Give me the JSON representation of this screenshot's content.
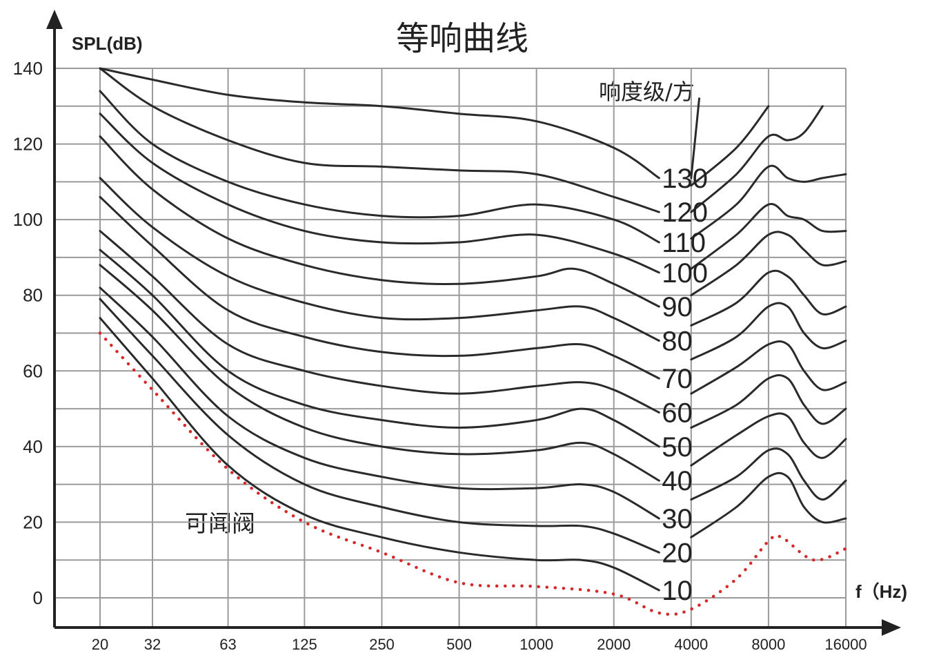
{
  "colors": {
    "curves": "#2a2a2a",
    "threshold": "#d62828",
    "grid": "#9a9a9a"
  },
  "chart_data": {
    "type": "line",
    "title": "等响曲线",
    "ylabel": "SPL(dB)",
    "xlabel": "f（Hz)",
    "legend_title": "响度级/方",
    "threshold_label": "可闻阀",
    "x_scale": "log",
    "xlim": [
      20,
      16000
    ],
    "ylim": [
      -8,
      140
    ],
    "grid": true,
    "x_ticks": [
      20,
      32,
      63,
      125,
      250,
      500,
      1000,
      2000,
      4000,
      8000,
      16000
    ],
    "x_tick_labels": [
      "20",
      "32",
      "63",
      "125",
      "250",
      "500",
      "1000",
      "2000",
      "4000",
      "8000",
      "16000"
    ],
    "y_ticks": [
      0,
      20,
      40,
      60,
      80,
      100,
      120,
      140
    ],
    "y_tick_labels": [
      "0",
      "20",
      "40",
      "60",
      "80",
      "100",
      "120",
      "140"
    ],
    "series": [
      {
        "name": "130",
        "x": [
          20,
          32,
          63,
          125,
          250,
          500,
          1000,
          2000,
          3000
        ],
        "y": [
          140,
          137,
          133,
          131,
          130,
          128,
          126,
          119,
          111
        ]
      },
      {
        "name": "120",
        "x": [
          20,
          32,
          63,
          125,
          250,
          500,
          1000,
          2000,
          3000
        ],
        "y": [
          140,
          130,
          121,
          115,
          114,
          113,
          112,
          106,
          102
        ]
      },
      {
        "name": "110",
        "x": [
          20,
          32,
          63,
          125,
          250,
          500,
          1000,
          2000,
          3000
        ],
        "y": [
          134,
          120,
          110,
          104,
          101,
          101,
          104,
          100,
          94
        ]
      },
      {
        "name": "100",
        "x": [
          20,
          32,
          63,
          125,
          250,
          500,
          1000,
          2000,
          3000
        ],
        "y": [
          128,
          115,
          104,
          97,
          94,
          94,
          96,
          91,
          86
        ]
      },
      {
        "name": "90",
        "x": [
          20,
          32,
          63,
          125,
          250,
          500,
          1000,
          1400,
          2000,
          3000
        ],
        "y": [
          122,
          108,
          95,
          88,
          84,
          83,
          85,
          87,
          83,
          77
        ]
      },
      {
        "name": "80",
        "x": [
          20,
          32,
          63,
          125,
          250,
          500,
          1000,
          1500,
          2000,
          3000
        ],
        "y": [
          111,
          98,
          85,
          78,
          74,
          74,
          76,
          77,
          74,
          68
        ]
      },
      {
        "name": "70",
        "x": [
          20,
          32,
          63,
          125,
          250,
          500,
          1000,
          1500,
          2000,
          3000
        ],
        "y": [
          106,
          93,
          76,
          69,
          65,
          64,
          66,
          67,
          64,
          58
        ]
      },
      {
        "name": "60",
        "x": [
          20,
          32,
          63,
          125,
          250,
          500,
          1000,
          1500,
          2000,
          3000
        ],
        "y": [
          97,
          85,
          67,
          60,
          56,
          54,
          56,
          57,
          55,
          49
        ]
      },
      {
        "name": "50",
        "x": [
          20,
          32,
          63,
          125,
          250,
          500,
          1000,
          1500,
          2000,
          3000
        ],
        "y": [
          92,
          80,
          60,
          51,
          47,
          45,
          47,
          50,
          47,
          40
        ]
      },
      {
        "name": "40",
        "x": [
          20,
          32,
          63,
          125,
          250,
          500,
          1000,
          1500,
          2000,
          3000
        ],
        "y": [
          88,
          76,
          56,
          45,
          40,
          38,
          39,
          41,
          38,
          31
        ]
      },
      {
        "name": "30",
        "x": [
          20,
          32,
          63,
          125,
          250,
          500,
          1000,
          1500,
          2000,
          3000
        ],
        "y": [
          82,
          69,
          48,
          37,
          32,
          29,
          29,
          30,
          28,
          21
        ]
      },
      {
        "name": "20",
        "x": [
          20,
          32,
          63,
          125,
          250,
          500,
          1000,
          1500,
          2000,
          3000
        ],
        "y": [
          79,
          64,
          43,
          30,
          24,
          20,
          19,
          19,
          17,
          12
        ]
      },
      {
        "name": "10",
        "x": [
          20,
          32,
          63,
          125,
          250,
          500,
          1000,
          1500,
          2000,
          3000
        ],
        "y": [
          74,
          58,
          35,
          22,
          16,
          12,
          10,
          10,
          8,
          2
        ]
      },
      {
        "name": "可闻阀",
        "x": [
          20,
          32,
          63,
          125,
          250,
          500,
          1000,
          2000,
          3000,
          4000,
          6000,
          8000,
          9000,
          12000,
          16000
        ],
        "y": [
          70,
          55,
          34,
          20,
          12,
          4,
          3,
          1,
          -4,
          -3,
          5,
          15,
          16,
          10,
          13
        ]
      }
    ],
    "high_freq_segments": [
      {
        "name": "130",
        "x": [
          4000,
          4300
        ],
        "y": [
          111,
          132
        ]
      },
      {
        "name": "120",
        "x": [
          4000,
          6000,
          8000
        ],
        "y": [
          109,
          119,
          130
        ]
      },
      {
        "name": "110",
        "x": [
          4000,
          6000,
          8000,
          9500,
          11000,
          13000
        ],
        "y": [
          102,
          112,
          122,
          121,
          123,
          130
        ]
      },
      {
        "name": "100",
        "x": [
          4000,
          6000,
          8000,
          9500,
          11000,
          13000,
          16000
        ],
        "y": [
          95,
          104,
          114,
          111,
          110,
          111,
          112
        ]
      },
      {
        "name": "90",
        "x": [
          4000,
          6000,
          8000,
          9500,
          11000,
          13000,
          16000
        ],
        "y": [
          87,
          96,
          104,
          101,
          100,
          97,
          97
        ]
      },
      {
        "name": "80",
        "x": [
          4000,
          6000,
          8000,
          9500,
          11000,
          13000,
          16000
        ],
        "y": [
          80,
          88,
          96,
          96,
          92,
          88,
          89
        ]
      },
      {
        "name": "70",
        "x": [
          4000,
          6000,
          8000,
          9500,
          11000,
          13000,
          16000
        ],
        "y": [
          72,
          78,
          86,
          85,
          80,
          75,
          77
        ]
      },
      {
        "name": "60",
        "x": [
          4000,
          6000,
          8000,
          9500,
          11000,
          13000,
          16000
        ],
        "y": [
          63,
          69,
          77,
          77,
          70,
          66,
          68
        ]
      },
      {
        "name": "50",
        "x": [
          4000,
          6000,
          8000,
          9500,
          11000,
          13000,
          16000
        ],
        "y": [
          54,
          61,
          67,
          67,
          60,
          55,
          57
        ]
      },
      {
        "name": "40",
        "x": [
          4000,
          6000,
          8000,
          9500,
          11000,
          13000,
          16000
        ],
        "y": [
          45,
          51,
          58,
          58,
          51,
          46,
          50
        ]
      },
      {
        "name": "30",
        "x": [
          4000,
          6000,
          8000,
          9500,
          11000,
          13000,
          16000
        ],
        "y": [
          35,
          43,
          48,
          48,
          41,
          37,
          42
        ]
      },
      {
        "name": "20",
        "x": [
          4000,
          6000,
          8000,
          9500,
          11000,
          13000,
          16000
        ],
        "y": [
          26,
          32,
          39,
          38,
          31,
          26,
          31
        ]
      },
      {
        "name": "10",
        "x": [
          4000,
          6000,
          8000,
          9500,
          11000,
          13000,
          16000
        ],
        "y": [
          16,
          24,
          32,
          32,
          24,
          20,
          21
        ]
      }
    ]
  }
}
